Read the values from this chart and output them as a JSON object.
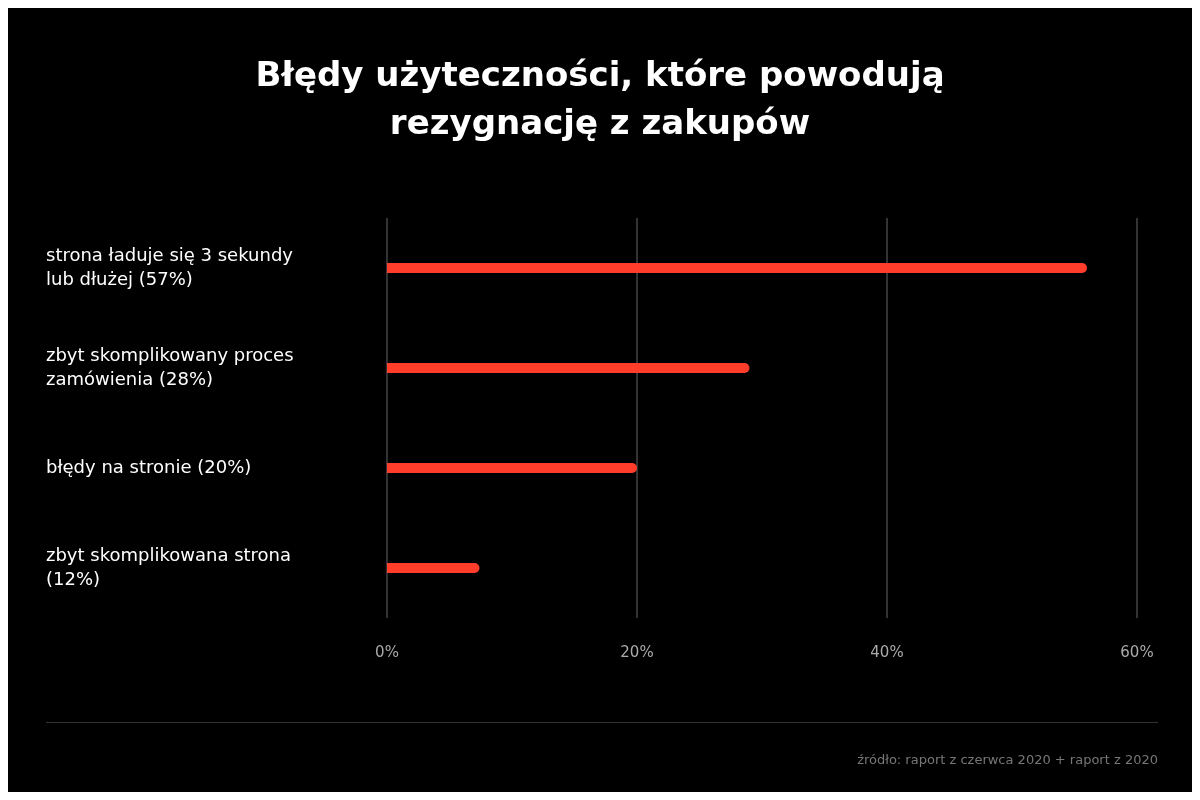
{
  "chart_data": {
    "type": "bar",
    "orientation": "horizontal",
    "title": "Błędy użyteczności, które powodują rezygnację z zakupów",
    "categories": [
      "strona ładuje się 3 sekundy lub dłużej (57%)",
      "zbyt skomplikowany proces zamówienia (28%)",
      "błędy na stronie (20%)",
      "zbyt skomplikowana strona (12%)"
    ],
    "values": [
      56,
      29,
      20,
      7.4
    ],
    "color": "#ff3d2a",
    "xlim": [
      0,
      60
    ],
    "xticks": [
      {
        "value": 0,
        "label": "0%"
      },
      {
        "value": 20,
        "label": "20%"
      },
      {
        "value": 40,
        "label": "40%"
      },
      {
        "value": 60,
        "label": "60%"
      }
    ],
    "grid": "x",
    "annotations": [
      "źródło: raport z czerwca 2020 + raport z 2020"
    ]
  }
}
